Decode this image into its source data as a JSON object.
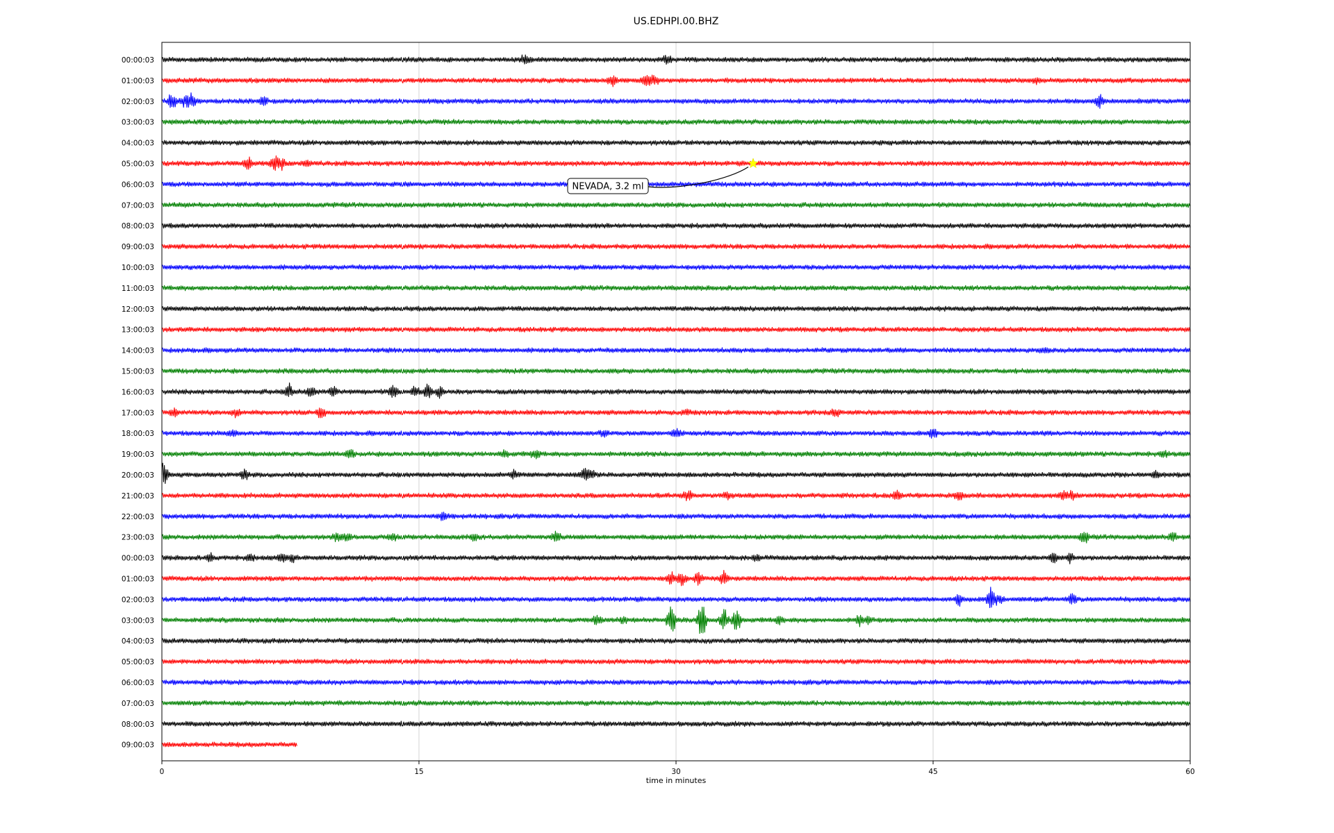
{
  "chart_data": {
    "type": "line",
    "title": "US.EDHPI.00.BHZ",
    "xlabel": "time in minutes",
    "ylabel": "",
    "xlim": [
      0,
      60
    ],
    "x_ticks": [
      "0",
      "15",
      "30",
      "45",
      "60"
    ],
    "x_tick_values": [
      0,
      15,
      30,
      45,
      60
    ],
    "grid": "vertical",
    "color_cycle": [
      "#000000",
      "#ff0000",
      "#0000ff",
      "#008000"
    ],
    "annotation": {
      "label": "NEVADA, 3.2 ml",
      "row_index": 5,
      "time_minutes": 34.5,
      "marker": "star",
      "marker_color": "#ffff00"
    },
    "rows": [
      {
        "label": "00:00:03",
        "end": 60,
        "events": [
          [
            21.2,
            0.7
          ],
          [
            29.5,
            0.6
          ]
        ]
      },
      {
        "label": "01:00:03",
        "end": 60,
        "events": [
          [
            26.3,
            0.7
          ],
          [
            28.3,
            0.8
          ],
          [
            28.7,
            0.6
          ],
          [
            51,
            0.3
          ]
        ]
      },
      {
        "label": "02:00:03",
        "end": 60,
        "events": [
          [
            0.6,
            1.0
          ],
          [
            1.3,
            0.6
          ],
          [
            1.7,
            1.0
          ],
          [
            5.9,
            0.7
          ],
          [
            54.7,
            0.8
          ]
        ]
      },
      {
        "label": "03:00:03",
        "end": 60,
        "events": []
      },
      {
        "label": "04:00:03",
        "end": 60,
        "events": []
      },
      {
        "label": "05:00:03",
        "end": 60,
        "events": [
          [
            5.0,
            0.7
          ],
          [
            6.6,
            1.0
          ],
          [
            7.0,
            0.6
          ],
          [
            8.4,
            0.3
          ]
        ]
      },
      {
        "label": "06:00:03",
        "end": 60,
        "events": []
      },
      {
        "label": "07:00:03",
        "end": 60,
        "events": []
      },
      {
        "label": "08:00:03",
        "end": 60,
        "events": []
      },
      {
        "label": "09:00:03",
        "end": 60,
        "events": []
      },
      {
        "label": "10:00:03",
        "end": 60,
        "events": []
      },
      {
        "label": "11:00:03",
        "end": 60,
        "events": []
      },
      {
        "label": "12:00:03",
        "end": 60,
        "events": []
      },
      {
        "label": "13:00:03",
        "end": 60,
        "events": []
      },
      {
        "label": "14:00:03",
        "end": 60,
        "events": [
          [
            51.5,
            0.3
          ]
        ]
      },
      {
        "label": "15:00:03",
        "end": 60,
        "events": []
      },
      {
        "label": "16:00:03",
        "end": 60,
        "events": [
          [
            7.4,
            0.9
          ],
          [
            8.7,
            0.8
          ],
          [
            10,
            0.5
          ],
          [
            13.5,
            0.7
          ],
          [
            14.8,
            0.6
          ],
          [
            15.5,
            0.8
          ],
          [
            16.2,
            0.6
          ]
        ]
      },
      {
        "label": "17:00:03",
        "end": 60,
        "events": [
          [
            0.7,
            0.4
          ],
          [
            4.3,
            0.4
          ],
          [
            9.3,
            0.7
          ],
          [
            30.6,
            0.3
          ],
          [
            39.3,
            0.4
          ]
        ]
      },
      {
        "label": "18:00:03",
        "end": 60,
        "events": [
          [
            4.1,
            0.4
          ],
          [
            25.8,
            0.4
          ],
          [
            30.0,
            0.6
          ],
          [
            45,
            0.6
          ]
        ]
      },
      {
        "label": "19:00:03",
        "end": 60,
        "events": [
          [
            11.0,
            0.5
          ],
          [
            20.0,
            0.3
          ],
          [
            21.8,
            0.5
          ],
          [
            58.5,
            0.4
          ]
        ]
      },
      {
        "label": "20:00:03",
        "end": 60,
        "events": [
          [
            0.1,
            1.6
          ],
          [
            4.8,
            0.5
          ],
          [
            20.5,
            0.4
          ],
          [
            24.6,
            0.6
          ],
          [
            25.0,
            0.8
          ],
          [
            58.0,
            0.3
          ]
        ]
      },
      {
        "label": "21:00:03",
        "end": 60,
        "events": [
          [
            30.7,
            0.6
          ],
          [
            33.0,
            0.4
          ],
          [
            42.9,
            0.5
          ],
          [
            46.5,
            0.5
          ],
          [
            52.6,
            0.5
          ],
          [
            53.1,
            0.6
          ]
        ]
      },
      {
        "label": "22:00:03",
        "end": 60,
        "events": [
          [
            16.4,
            0.6
          ]
        ]
      },
      {
        "label": "23:00:03",
        "end": 60,
        "events": [
          [
            10.2,
            0.5
          ],
          [
            10.8,
            0.6
          ],
          [
            13.5,
            0.4
          ],
          [
            18.2,
            0.4
          ],
          [
            23.0,
            0.5
          ],
          [
            53.8,
            0.7
          ],
          [
            59.0,
            0.4
          ]
        ]
      },
      {
        "label": "00:00:03",
        "end": 60,
        "events": [
          [
            2.8,
            0.6
          ],
          [
            5.2,
            0.4
          ],
          [
            7.0,
            0.5
          ],
          [
            7.6,
            0.4
          ],
          [
            34.7,
            0.4
          ],
          [
            52.0,
            0.7
          ],
          [
            53.0,
            0.5
          ]
        ]
      },
      {
        "label": "01:00:03",
        "end": 60,
        "events": [
          [
            29.7,
            0.8
          ],
          [
            30.3,
            0.9
          ],
          [
            31.3,
            0.6
          ],
          [
            32.8,
            1.0
          ]
        ]
      },
      {
        "label": "02:00:03",
        "end": 60,
        "events": [
          [
            46.5,
            0.6
          ],
          [
            48.4,
            1.5
          ],
          [
            48.9,
            0.5
          ],
          [
            53.1,
            0.7
          ]
        ]
      },
      {
        "label": "03:00:03",
        "end": 60,
        "events": [
          [
            25.4,
            0.6
          ],
          [
            26.9,
            0.5
          ],
          [
            29.7,
            2.3
          ],
          [
            31.5,
            2.3
          ],
          [
            32.8,
            1.5
          ],
          [
            33.5,
            1.6
          ],
          [
            36.0,
            0.4
          ],
          [
            40.7,
            0.6
          ],
          [
            41.2,
            0.4
          ]
        ]
      },
      {
        "label": "04:00:03",
        "end": 60,
        "events": []
      },
      {
        "label": "05:00:03",
        "end": 60,
        "events": []
      },
      {
        "label": "06:00:03",
        "end": 60,
        "events": []
      },
      {
        "label": "07:00:03",
        "end": 60,
        "events": []
      },
      {
        "label": "08:00:03",
        "end": 60,
        "events": []
      },
      {
        "label": "09:00:03",
        "end": 7.9,
        "events": []
      }
    ]
  }
}
